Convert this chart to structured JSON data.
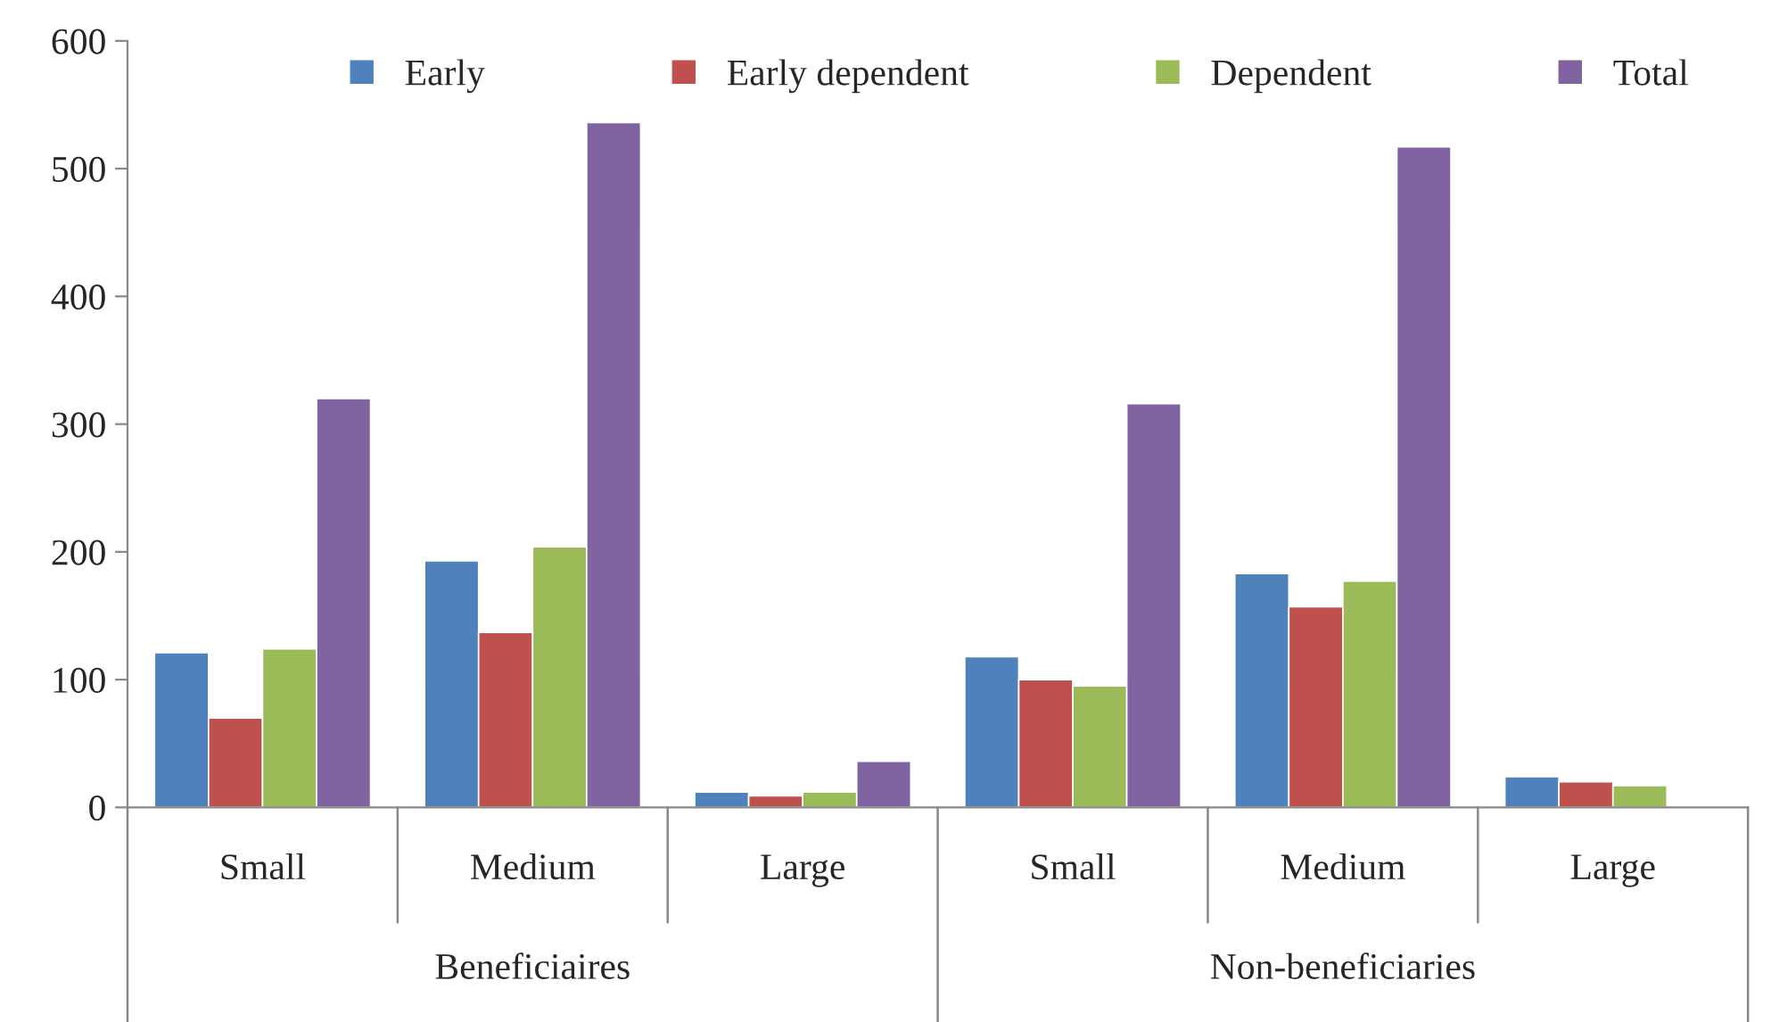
{
  "chart_data": {
    "type": "bar",
    "categories": [
      "Small",
      "Medium",
      "Large",
      "Small",
      "Medium",
      "Large"
    ],
    "series": [
      {
        "name": "Early",
        "color": "#4f81bd",
        "values": [
          121,
          193,
          12,
          118,
          183,
          24
        ]
      },
      {
        "name": "Early dependent",
        "color": "#c0504d",
        "values": [
          70,
          137,
          9,
          100,
          157,
          20
        ]
      },
      {
        "name": "Dependent",
        "color": "#9bbb59",
        "values": [
          124,
          204,
          12,
          95,
          177,
          17
        ]
      },
      {
        "name": "Total",
        "color": "#8064a2",
        "values": [
          320,
          536,
          36,
          316,
          517,
          null
        ]
      }
    ],
    "annotations": [
      "Beneficiaires",
      "Non-beneficiaries"
    ],
    "ylim": [
      0,
      600
    ],
    "yticks": [
      0,
      100,
      200,
      300,
      400,
      500,
      600
    ],
    "grid": false,
    "legend": "top"
  }
}
